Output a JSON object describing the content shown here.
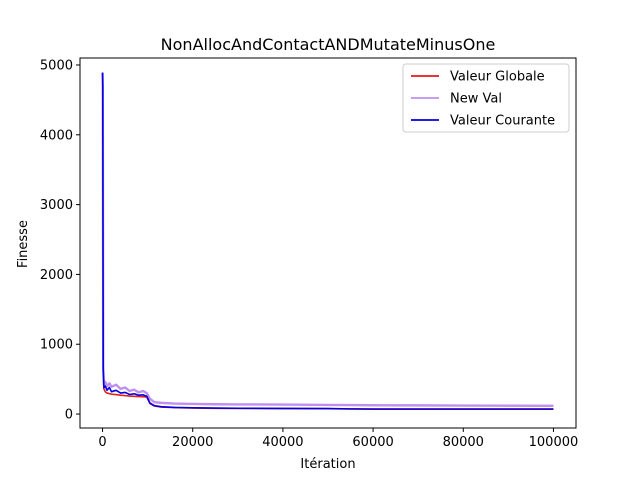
{
  "chart_data": {
    "type": "line",
    "title": "NonAllocAndContactANDMutateMinusOne",
    "xlabel": "Itération",
    "ylabel": "Finesse",
    "xlim": [
      -5000,
      105000
    ],
    "ylim": [
      -200,
      5100
    ],
    "x_ticks": [
      0,
      20000,
      40000,
      60000,
      80000,
      100000
    ],
    "x_tick_labels": [
      "0",
      "20000",
      "40000",
      "60000",
      "80000",
      "100000"
    ],
    "y_ticks": [
      0,
      1000,
      2000,
      3000,
      4000,
      5000
    ],
    "y_tick_labels": [
      "0",
      "1000",
      "2000",
      "3000",
      "4000",
      "5000"
    ],
    "grid": false,
    "legend_position": "top-right",
    "series": [
      {
        "name": "Valeur Globale",
        "color": "#e41a1c",
        "x": [
          0,
          50,
          150,
          300,
          600,
          1000,
          2000,
          4000,
          6000,
          8000,
          9800,
          10500,
          11500,
          13000,
          16000,
          20000,
          25000,
          30000,
          40000,
          50000,
          55000,
          60000,
          70000,
          80000,
          90000,
          100000
        ],
        "y": [
          4890,
          4700,
          620,
          360,
          320,
          300,
          285,
          270,
          258,
          250,
          245,
          150,
          115,
          100,
          92,
          86,
          82,
          80,
          78,
          76,
          72,
          70,
          70,
          70,
          70,
          70
        ]
      },
      {
        "name": "New Val",
        "color": "#c08ff0",
        "x": [
          0,
          50,
          150,
          300,
          600,
          1000,
          1500,
          2000,
          3000,
          4000,
          5000,
          6000,
          7000,
          8000,
          9000,
          9800,
          10500,
          11500,
          13000,
          16000,
          20000,
          25000,
          30000,
          40000,
          50000,
          55000,
          60000,
          70000,
          80000,
          90000,
          100000
        ],
        "y": [
          4890,
          4700,
          700,
          420,
          460,
          400,
          440,
          390,
          420,
          360,
          380,
          330,
          350,
          310,
          330,
          300,
          220,
          170,
          160,
          150,
          145,
          140,
          138,
          135,
          130,
          128,
          126,
          124,
          122,
          120,
          118
        ]
      },
      {
        "name": "Valeur Courante",
        "color": "#0000e0",
        "x": [
          0,
          50,
          150,
          300,
          600,
          1000,
          1500,
          2000,
          3000,
          4000,
          5000,
          6000,
          7000,
          8000,
          9000,
          9800,
          10500,
          11500,
          13000,
          16000,
          20000,
          25000,
          30000,
          40000,
          50000,
          55000,
          60000,
          70000,
          80000,
          90000,
          100000
        ],
        "y": [
          4890,
          4700,
          640,
          380,
          400,
          340,
          380,
          320,
          340,
          300,
          310,
          280,
          290,
          270,
          275,
          255,
          160,
          120,
          105,
          95,
          90,
          85,
          83,
          80,
          78,
          74,
          72,
          72,
          72,
          72,
          72
        ]
      }
    ]
  }
}
